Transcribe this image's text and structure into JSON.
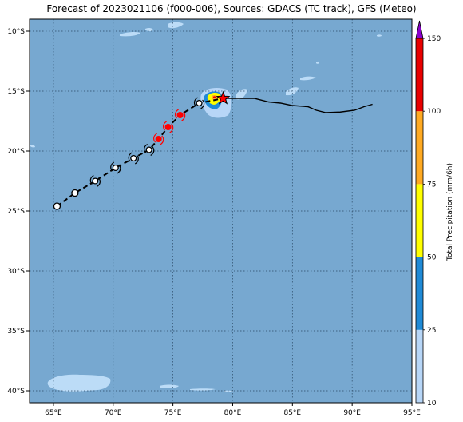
{
  "title": "Forecast of 2023021106 (f000-006), Sources: GDACS (TC track), GFS (Meteo)",
  "map": {
    "lon_range": [
      63,
      95
    ],
    "lat_range": [
      -41,
      -9
    ],
    "lon_ticks": [
      {
        "v": 65,
        "label": "65°E"
      },
      {
        "v": 70,
        "label": "70°E"
      },
      {
        "v": 75,
        "label": "75°E"
      },
      {
        "v": 80,
        "label": "80°E"
      },
      {
        "v": 85,
        "label": "85°E"
      },
      {
        "v": 90,
        "label": "90°E"
      },
      {
        "v": 95,
        "label": "95°E"
      }
    ],
    "lat_ticks": [
      {
        "v": -10,
        "label": "10°S"
      },
      {
        "v": -15,
        "label": "15°S"
      },
      {
        "v": -20,
        "label": "20°S"
      },
      {
        "v": -25,
        "label": "25°S"
      },
      {
        "v": -30,
        "label": "30°S"
      },
      {
        "v": -35,
        "label": "35°S"
      },
      {
        "v": -40,
        "label": "40°S"
      }
    ],
    "ocean_color": "#77a8d0",
    "grid": true
  },
  "past_track": [
    [
      65.3,
      -24.6
    ],
    [
      66.8,
      -23.5
    ],
    [
      68.5,
      -22.5
    ],
    [
      70.2,
      -21.4
    ],
    [
      71.7,
      -20.6
    ],
    [
      73.0,
      -19.9
    ],
    [
      73.8,
      -19.0
    ],
    [
      74.6,
      -18.0
    ],
    [
      75.6,
      -17.0
    ],
    [
      77.2,
      -16.0
    ],
    [
      79.2,
      -15.6
    ]
  ],
  "track_points": [
    {
      "lon": 65.3,
      "lat": -24.6,
      "kind": "depression",
      "color": "#ffffff"
    },
    {
      "lon": 66.8,
      "lat": -23.5,
      "kind": "depression",
      "color": "#ffffff"
    },
    {
      "lon": 68.5,
      "lat": -22.5,
      "kind": "storm",
      "color": "#ffffff"
    },
    {
      "lon": 70.2,
      "lat": -21.4,
      "kind": "storm",
      "color": "#ffffff"
    },
    {
      "lon": 71.7,
      "lat": -20.6,
      "kind": "storm",
      "color": "#ffffff"
    },
    {
      "lon": 73.0,
      "lat": -19.9,
      "kind": "storm",
      "color": "#ffffff"
    },
    {
      "lon": 73.8,
      "lat": -19.0,
      "kind": "cyclone",
      "color": "#ff0000"
    },
    {
      "lon": 74.6,
      "lat": -18.0,
      "kind": "cyclone",
      "color": "#ff0000"
    },
    {
      "lon": 75.6,
      "lat": -17.0,
      "kind": "cyclone",
      "color": "#ff0000"
    },
    {
      "lon": 77.2,
      "lat": -16.0,
      "kind": "storm",
      "color": "#ffffff"
    }
  ],
  "current_position": {
    "lon": 79.2,
    "lat": -15.6,
    "color": "#ff0000"
  },
  "forecast_track": [
    [
      79.2,
      -15.6
    ],
    [
      80.5,
      -15.6
    ],
    [
      81.8,
      -15.6
    ],
    [
      83.0,
      -15.9
    ],
    [
      84.0,
      -16.0
    ],
    [
      85.0,
      -16.2
    ],
    [
      86.3,
      -16.3
    ],
    [
      87.0,
      -16.6
    ],
    [
      87.8,
      -16.8
    ],
    [
      89.0,
      -16.75
    ],
    [
      90.2,
      -16.6
    ],
    [
      91.0,
      -16.3
    ],
    [
      91.7,
      -16.1
    ]
  ],
  "colorbar": {
    "label": "Total Precipitation (mm/6h)",
    "levels": [
      10,
      25,
      50,
      75,
      100,
      150
    ],
    "colors": [
      "#b7d6f7",
      "#1f8ad6",
      "#ffff00",
      "#ffaa22",
      "#e80000"
    ],
    "extend_color": "#8b00cc"
  },
  "chart_data": {
    "type": "map",
    "title": "Forecast of 2023021106 (f000-006), Sources: GDACS (TC track), GFS (Meteo)",
    "xlim": [
      63,
      95
    ],
    "ylim": [
      -41,
      -9
    ],
    "series": [
      {
        "name": "",
        "type": "line",
        "x": [
          65.3,
          66.8,
          68.5,
          70.2,
          71.7,
          73.0,
          73.8,
          74.6,
          75.6,
          77.2,
          79.2
        ],
        "y": [
          -24.6,
          -23.5,
          -22.5,
          -21.4,
          -20.6,
          -19.9,
          -19.0,
          -18.0,
          -17.0,
          -16.0,
          -15.6
        ]
      },
      {
        "name": "",
        "type": "line",
        "x": [
          79.2,
          80.5,
          81.8,
          83.0,
          84.0,
          85.0,
          86.3,
          87.0,
          87.8,
          89.0,
          90.2,
          91.0,
          91.7
        ],
        "y": [
          -15.6,
          -15.6,
          -15.6,
          -15.9,
          -16.0,
          -16.2,
          -16.3,
          -16.6,
          -16.8,
          -16.75,
          -16.6,
          -16.3,
          -16.1
        ]
      }
    ],
    "colorbar_levels": [
      10,
      25,
      50,
      75,
      100,
      150
    ],
    "colorbar_label": "Total Precipitation (mm/6h)"
  }
}
